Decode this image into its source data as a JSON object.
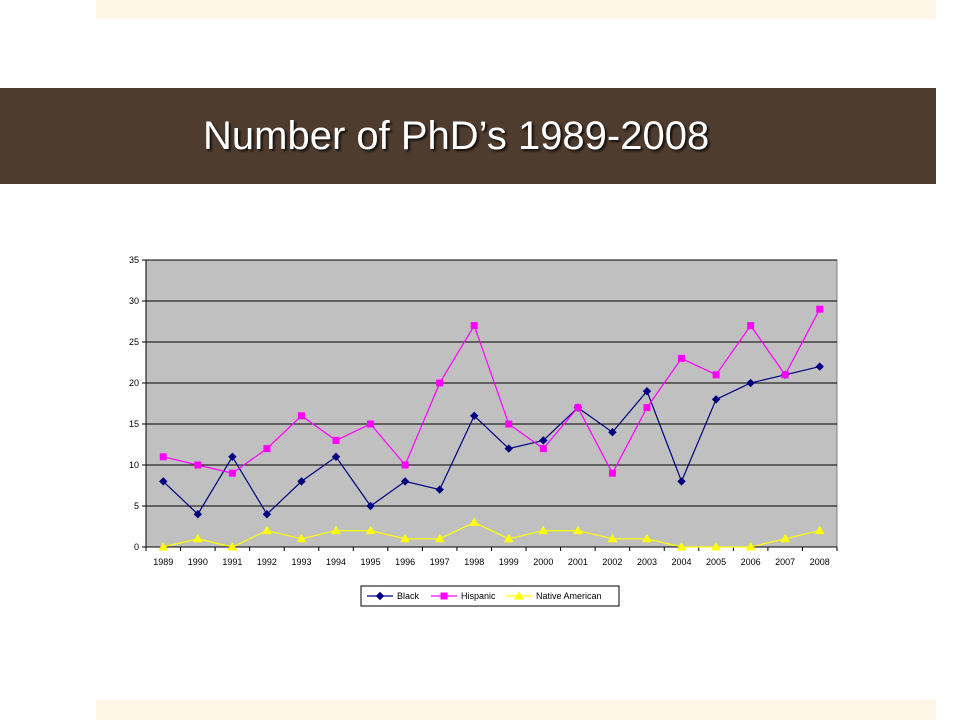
{
  "slide": {
    "title": "Number of PhD’s 1989-2008"
  },
  "colors": {
    "title_bar": "#4e3c2f",
    "band": "#fdf6e6",
    "plot_bg": "#c0c0c0"
  },
  "chart_data": {
    "type": "line",
    "categories": [
      "1989",
      "1990",
      "1991",
      "1992",
      "1993",
      "1994",
      "1995",
      "1996",
      "1997",
      "1998",
      "1999",
      "2000",
      "2001",
      "2002",
      "2003",
      "2004",
      "2005",
      "2006",
      "2007",
      "2008"
    ],
    "ylim": [
      0,
      35
    ],
    "yticks": [
      0,
      5,
      10,
      15,
      20,
      25,
      30,
      35
    ],
    "grid": true,
    "legend_position": "bottom",
    "series": [
      {
        "name": "Black",
        "color": "#000080",
        "marker": "diamond",
        "values": [
          8,
          4,
          11,
          4,
          8,
          11,
          5,
          8,
          7,
          16,
          12,
          13,
          17,
          14,
          19,
          8,
          18,
          20,
          21,
          22
        ]
      },
      {
        "name": "Hispanic",
        "color": "#ff00ff",
        "marker": "square",
        "values": [
          11,
          10,
          9,
          12,
          16,
          13,
          15,
          10,
          20,
          27,
          15,
          12,
          17,
          9,
          17,
          23,
          21,
          27,
          21,
          29
        ]
      },
      {
        "name": "Native American",
        "color": "#ffff00",
        "marker": "triangle",
        "values": [
          0,
          1,
          0,
          2,
          1,
          2,
          2,
          1,
          1,
          3,
          1,
          2,
          2,
          1,
          1,
          0,
          0,
          0,
          1,
          2
        ]
      }
    ]
  }
}
